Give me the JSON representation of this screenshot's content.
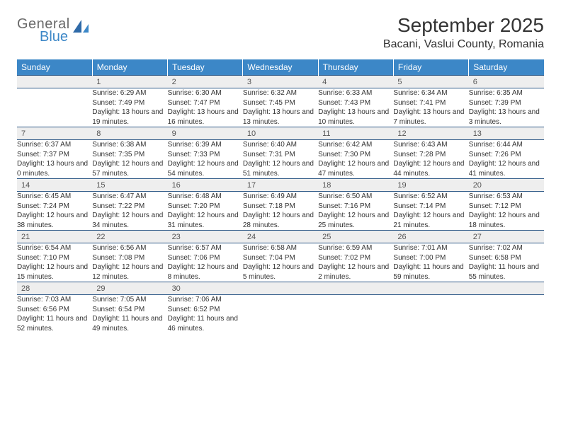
{
  "brand": {
    "line1": "General",
    "line2": "Blue"
  },
  "title": "September 2025",
  "location": "Bacani, Vaslui County, Romania",
  "colors": {
    "header_bg": "#3c87c7",
    "header_fg": "#ffffff",
    "daynum_bg": "#eeeeee",
    "rule": "#2f5a88",
    "logo_gray": "#6a6a6a",
    "logo_blue": "#3c87c7"
  },
  "weekdays": [
    "Sunday",
    "Monday",
    "Tuesday",
    "Wednesday",
    "Thursday",
    "Friday",
    "Saturday"
  ],
  "weeks": [
    [
      {
        "num": "",
        "sunrise": "",
        "sunset": "",
        "daylight": ""
      },
      {
        "num": "1",
        "sunrise": "Sunrise: 6:29 AM",
        "sunset": "Sunset: 7:49 PM",
        "daylight": "Daylight: 13 hours and 19 minutes."
      },
      {
        "num": "2",
        "sunrise": "Sunrise: 6:30 AM",
        "sunset": "Sunset: 7:47 PM",
        "daylight": "Daylight: 13 hours and 16 minutes."
      },
      {
        "num": "3",
        "sunrise": "Sunrise: 6:32 AM",
        "sunset": "Sunset: 7:45 PM",
        "daylight": "Daylight: 13 hours and 13 minutes."
      },
      {
        "num": "4",
        "sunrise": "Sunrise: 6:33 AM",
        "sunset": "Sunset: 7:43 PM",
        "daylight": "Daylight: 13 hours and 10 minutes."
      },
      {
        "num": "5",
        "sunrise": "Sunrise: 6:34 AM",
        "sunset": "Sunset: 7:41 PM",
        "daylight": "Daylight: 13 hours and 7 minutes."
      },
      {
        "num": "6",
        "sunrise": "Sunrise: 6:35 AM",
        "sunset": "Sunset: 7:39 PM",
        "daylight": "Daylight: 13 hours and 3 minutes."
      }
    ],
    [
      {
        "num": "7",
        "sunrise": "Sunrise: 6:37 AM",
        "sunset": "Sunset: 7:37 PM",
        "daylight": "Daylight: 13 hours and 0 minutes."
      },
      {
        "num": "8",
        "sunrise": "Sunrise: 6:38 AM",
        "sunset": "Sunset: 7:35 PM",
        "daylight": "Daylight: 12 hours and 57 minutes."
      },
      {
        "num": "9",
        "sunrise": "Sunrise: 6:39 AM",
        "sunset": "Sunset: 7:33 PM",
        "daylight": "Daylight: 12 hours and 54 minutes."
      },
      {
        "num": "10",
        "sunrise": "Sunrise: 6:40 AM",
        "sunset": "Sunset: 7:31 PM",
        "daylight": "Daylight: 12 hours and 51 minutes."
      },
      {
        "num": "11",
        "sunrise": "Sunrise: 6:42 AM",
        "sunset": "Sunset: 7:30 PM",
        "daylight": "Daylight: 12 hours and 47 minutes."
      },
      {
        "num": "12",
        "sunrise": "Sunrise: 6:43 AM",
        "sunset": "Sunset: 7:28 PM",
        "daylight": "Daylight: 12 hours and 44 minutes."
      },
      {
        "num": "13",
        "sunrise": "Sunrise: 6:44 AM",
        "sunset": "Sunset: 7:26 PM",
        "daylight": "Daylight: 12 hours and 41 minutes."
      }
    ],
    [
      {
        "num": "14",
        "sunrise": "Sunrise: 6:45 AM",
        "sunset": "Sunset: 7:24 PM",
        "daylight": "Daylight: 12 hours and 38 minutes."
      },
      {
        "num": "15",
        "sunrise": "Sunrise: 6:47 AM",
        "sunset": "Sunset: 7:22 PM",
        "daylight": "Daylight: 12 hours and 34 minutes."
      },
      {
        "num": "16",
        "sunrise": "Sunrise: 6:48 AM",
        "sunset": "Sunset: 7:20 PM",
        "daylight": "Daylight: 12 hours and 31 minutes."
      },
      {
        "num": "17",
        "sunrise": "Sunrise: 6:49 AM",
        "sunset": "Sunset: 7:18 PM",
        "daylight": "Daylight: 12 hours and 28 minutes."
      },
      {
        "num": "18",
        "sunrise": "Sunrise: 6:50 AM",
        "sunset": "Sunset: 7:16 PM",
        "daylight": "Daylight: 12 hours and 25 minutes."
      },
      {
        "num": "19",
        "sunrise": "Sunrise: 6:52 AM",
        "sunset": "Sunset: 7:14 PM",
        "daylight": "Daylight: 12 hours and 21 minutes."
      },
      {
        "num": "20",
        "sunrise": "Sunrise: 6:53 AM",
        "sunset": "Sunset: 7:12 PM",
        "daylight": "Daylight: 12 hours and 18 minutes."
      }
    ],
    [
      {
        "num": "21",
        "sunrise": "Sunrise: 6:54 AM",
        "sunset": "Sunset: 7:10 PM",
        "daylight": "Daylight: 12 hours and 15 minutes."
      },
      {
        "num": "22",
        "sunrise": "Sunrise: 6:56 AM",
        "sunset": "Sunset: 7:08 PM",
        "daylight": "Daylight: 12 hours and 12 minutes."
      },
      {
        "num": "23",
        "sunrise": "Sunrise: 6:57 AM",
        "sunset": "Sunset: 7:06 PM",
        "daylight": "Daylight: 12 hours and 8 minutes."
      },
      {
        "num": "24",
        "sunrise": "Sunrise: 6:58 AM",
        "sunset": "Sunset: 7:04 PM",
        "daylight": "Daylight: 12 hours and 5 minutes."
      },
      {
        "num": "25",
        "sunrise": "Sunrise: 6:59 AM",
        "sunset": "Sunset: 7:02 PM",
        "daylight": "Daylight: 12 hours and 2 minutes."
      },
      {
        "num": "26",
        "sunrise": "Sunrise: 7:01 AM",
        "sunset": "Sunset: 7:00 PM",
        "daylight": "Daylight: 11 hours and 59 minutes."
      },
      {
        "num": "27",
        "sunrise": "Sunrise: 7:02 AM",
        "sunset": "Sunset: 6:58 PM",
        "daylight": "Daylight: 11 hours and 55 minutes."
      }
    ],
    [
      {
        "num": "28",
        "sunrise": "Sunrise: 7:03 AM",
        "sunset": "Sunset: 6:56 PM",
        "daylight": "Daylight: 11 hours and 52 minutes."
      },
      {
        "num": "29",
        "sunrise": "Sunrise: 7:05 AM",
        "sunset": "Sunset: 6:54 PM",
        "daylight": "Daylight: 11 hours and 49 minutes."
      },
      {
        "num": "30",
        "sunrise": "Sunrise: 7:06 AM",
        "sunset": "Sunset: 6:52 PM",
        "daylight": "Daylight: 11 hours and 46 minutes."
      },
      {
        "num": "",
        "sunrise": "",
        "sunset": "",
        "daylight": ""
      },
      {
        "num": "",
        "sunrise": "",
        "sunset": "",
        "daylight": ""
      },
      {
        "num": "",
        "sunrise": "",
        "sunset": "",
        "daylight": ""
      },
      {
        "num": "",
        "sunrise": "",
        "sunset": "",
        "daylight": ""
      }
    ]
  ]
}
